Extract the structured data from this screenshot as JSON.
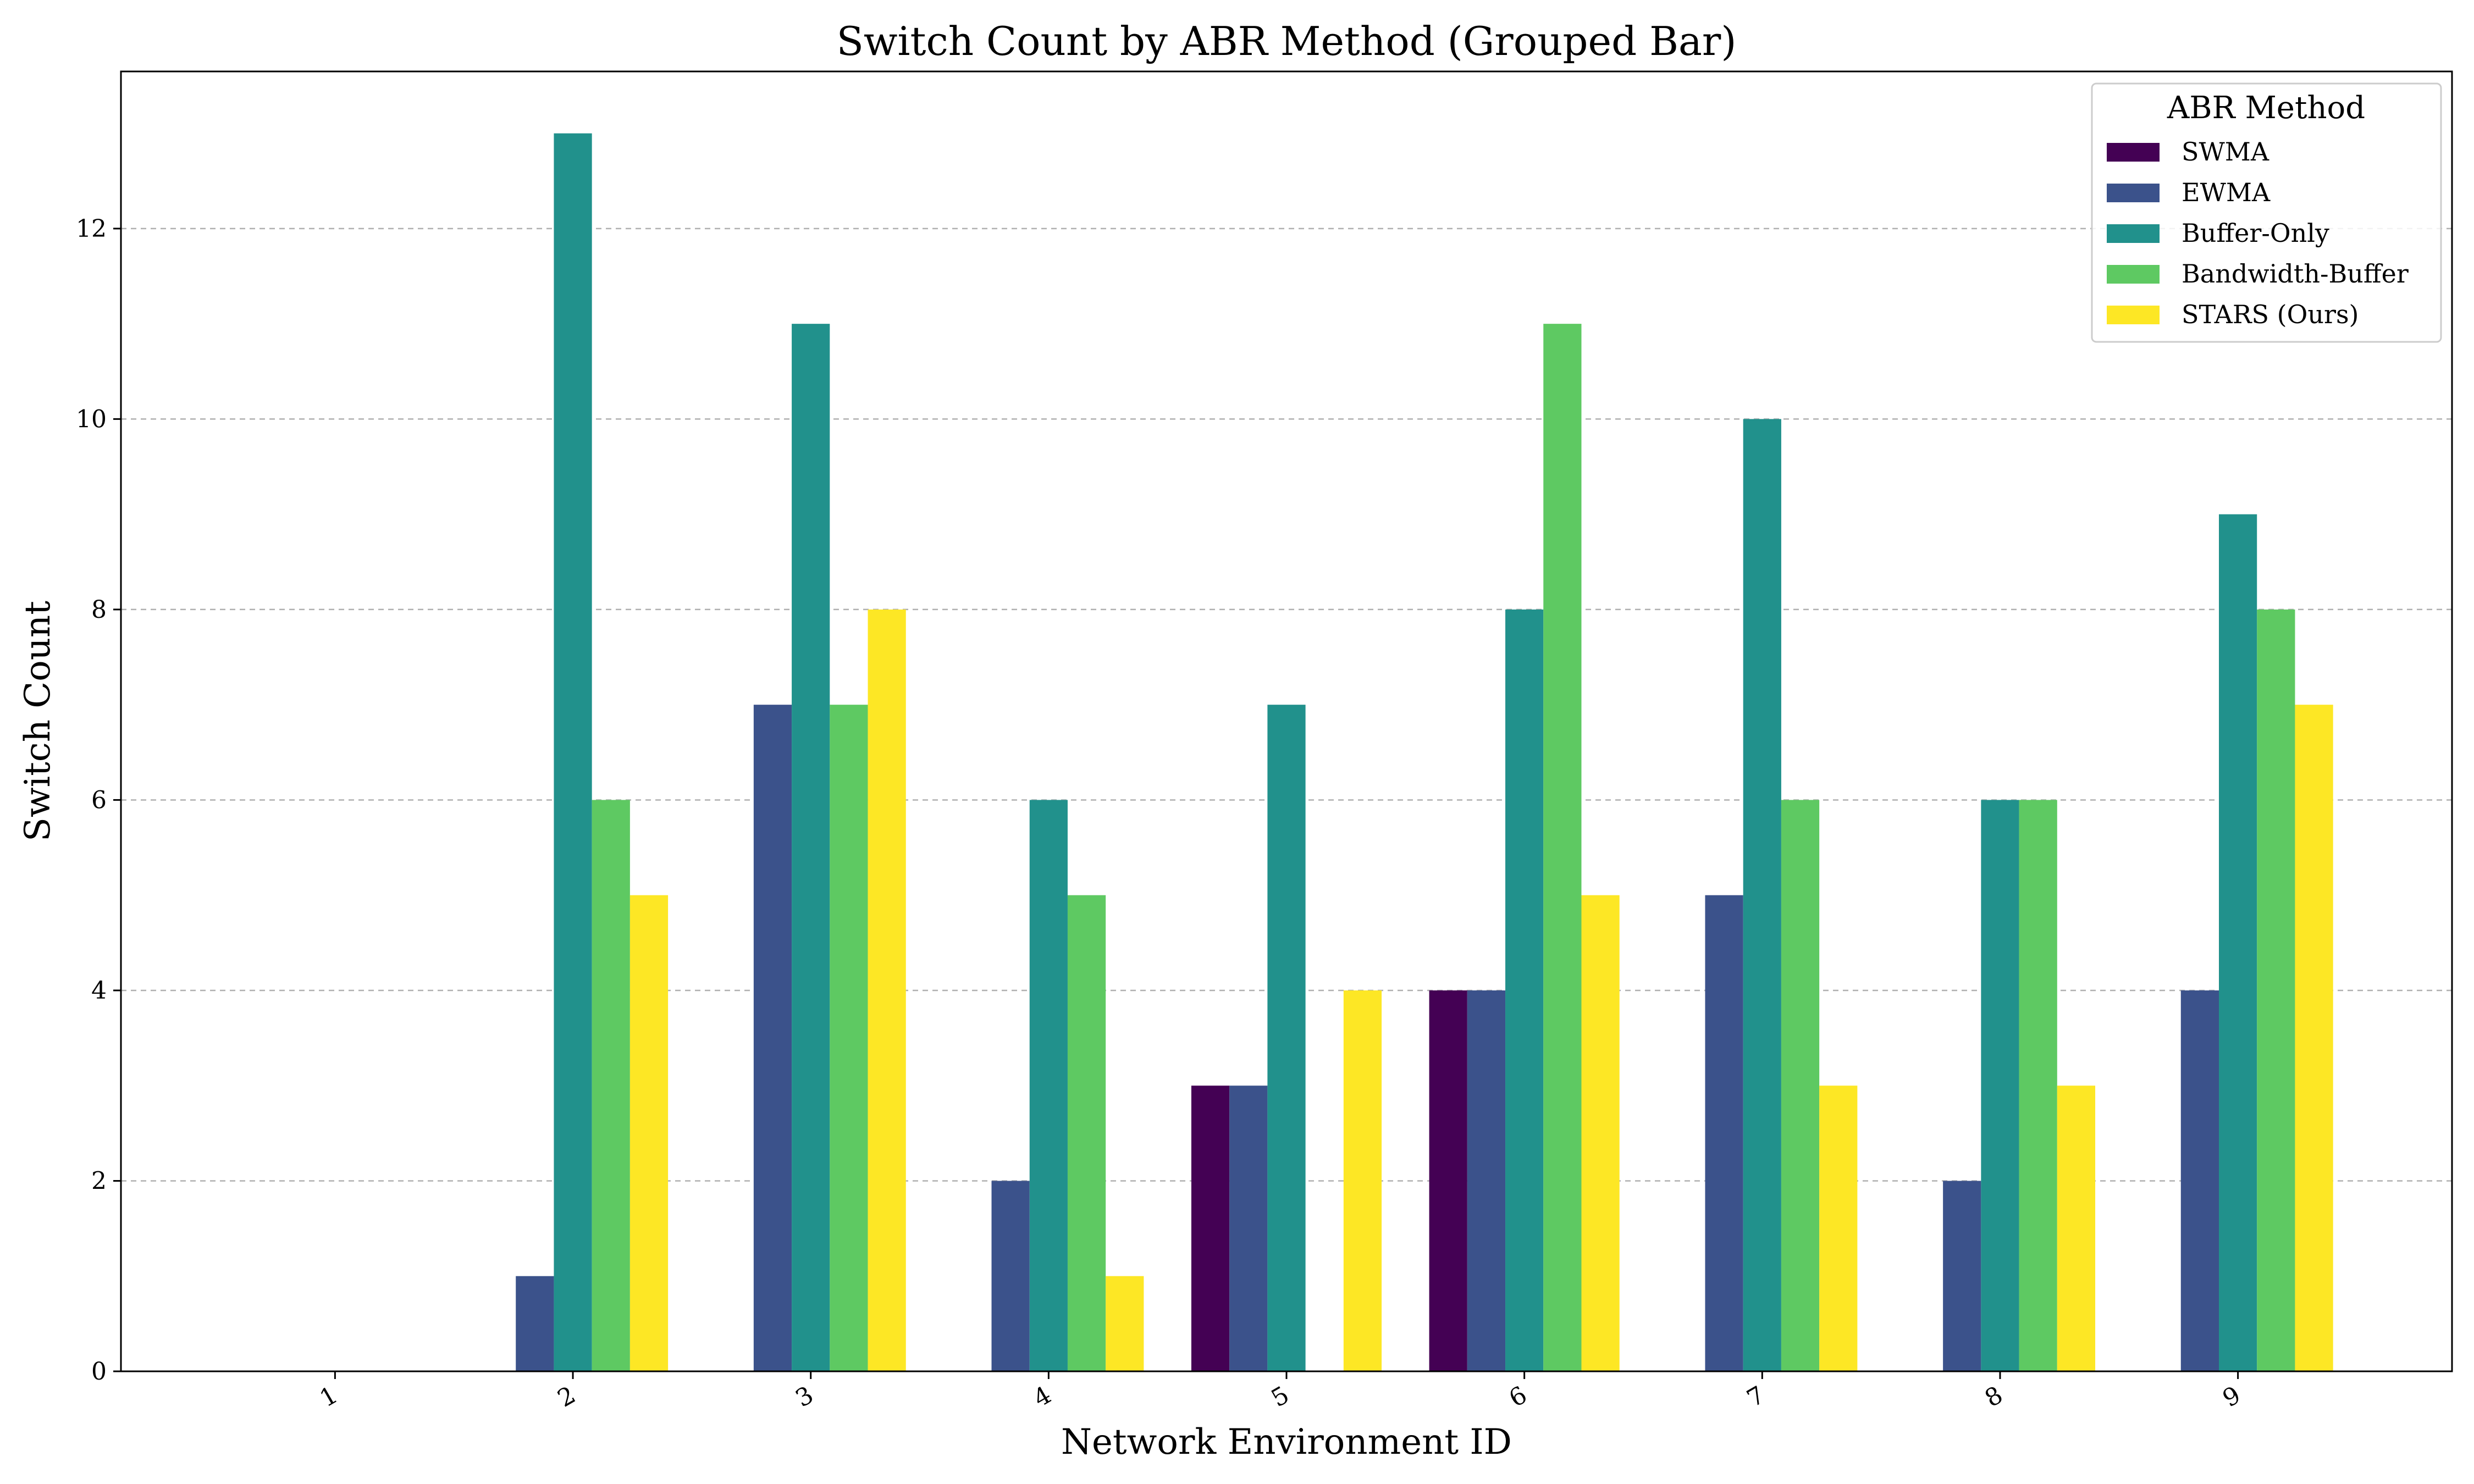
{
  "chart_data": {
    "type": "bar",
    "title": "Switch Count by ABR Method (Grouped Bar)",
    "xlabel": "Network Environment ID",
    "ylabel": "Switch Count",
    "categories": [
      "1",
      "2",
      "3",
      "4",
      "5",
      "6",
      "7",
      "8",
      "9"
    ],
    "ylim": [
      0,
      13.65
    ],
    "yticks": [
      0,
      2,
      4,
      6,
      8,
      10,
      12
    ],
    "grid": "y-dashed",
    "legend": {
      "title": "ABR Method",
      "position": "top-right"
    },
    "series": [
      {
        "name": "SWMA",
        "color": "#440154",
        "values": [
          0,
          0,
          0,
          0,
          3,
          4,
          0,
          0,
          0
        ]
      },
      {
        "name": "EWMA",
        "color": "#3b528b",
        "values": [
          0,
          1,
          7,
          2,
          3,
          4,
          5,
          2,
          4
        ]
      },
      {
        "name": "Buffer-Only",
        "color": "#21918c",
        "values": [
          0,
          13,
          11,
          6,
          7,
          8,
          10,
          6,
          9
        ]
      },
      {
        "name": "Bandwidth-Buffer",
        "color": "#5ec962",
        "values": [
          0,
          6,
          7,
          5,
          0,
          11,
          6,
          6,
          8
        ]
      },
      {
        "name": "STARS (Ours)",
        "color": "#fde725",
        "values": [
          0,
          5,
          8,
          1,
          4,
          5,
          3,
          3,
          7
        ]
      }
    ]
  }
}
